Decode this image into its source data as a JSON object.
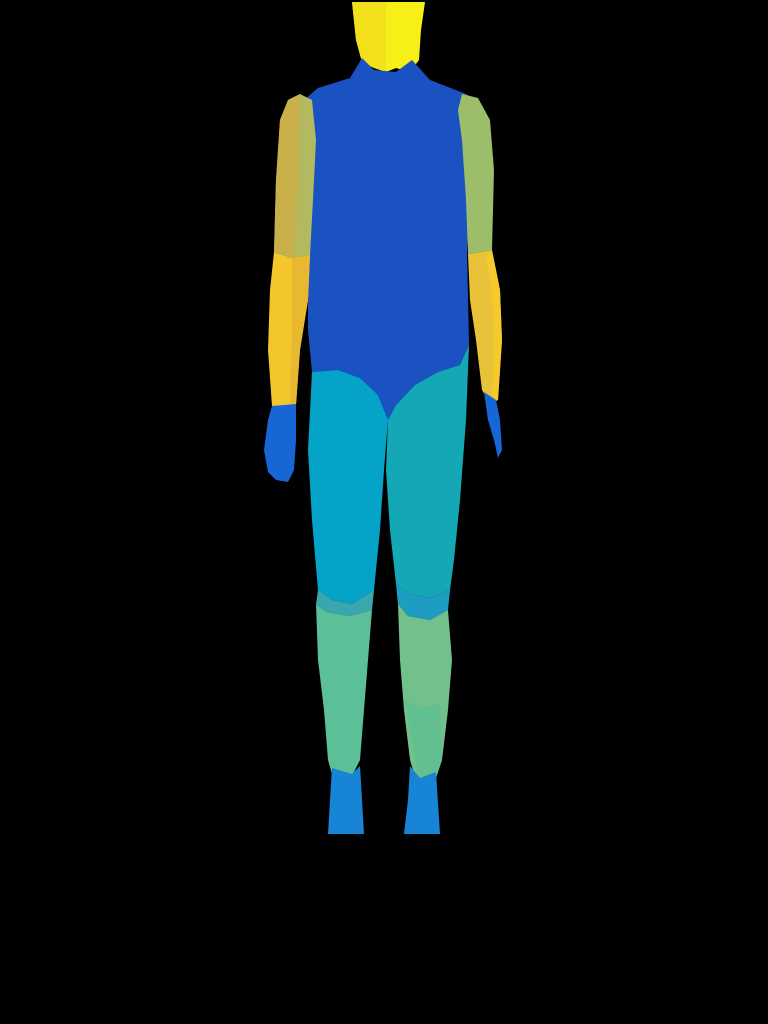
{
  "image": {
    "background_color": "#000000",
    "subject": "body-part-segmentation-silhouette",
    "segments": [
      {
        "name": "head",
        "color": "#f7f016"
      },
      {
        "name": "head-left-half",
        "color": "#f2e01a"
      },
      {
        "name": "torso",
        "color": "#1a52c2"
      },
      {
        "name": "upper-arm-right-side-of-image",
        "color": "#c9b04a"
      },
      {
        "name": "upper-arm-left-side-of-image",
        "color": "#9cbd6a"
      },
      {
        "name": "forearm-left-of-image",
        "color": "#f2c62c"
      },
      {
        "name": "forearm-right-of-image",
        "color": "#e8c33a"
      },
      {
        "name": "hand-left-of-image",
        "color": "#1766d6"
      },
      {
        "name": "hand-right-of-image",
        "color": "#1766d6"
      },
      {
        "name": "thigh-left-of-image",
        "color": "#05a3c8"
      },
      {
        "name": "thigh-right-of-image",
        "color": "#14a8b6"
      },
      {
        "name": "lower-leg-left-of-image",
        "color": "#5bbf98"
      },
      {
        "name": "lower-leg-right-of-image",
        "color": "#72c08c"
      },
      {
        "name": "foot-left-of-image",
        "color": "#1784d6"
      },
      {
        "name": "foot-right-of-image",
        "color": "#1784d6"
      }
    ]
  }
}
